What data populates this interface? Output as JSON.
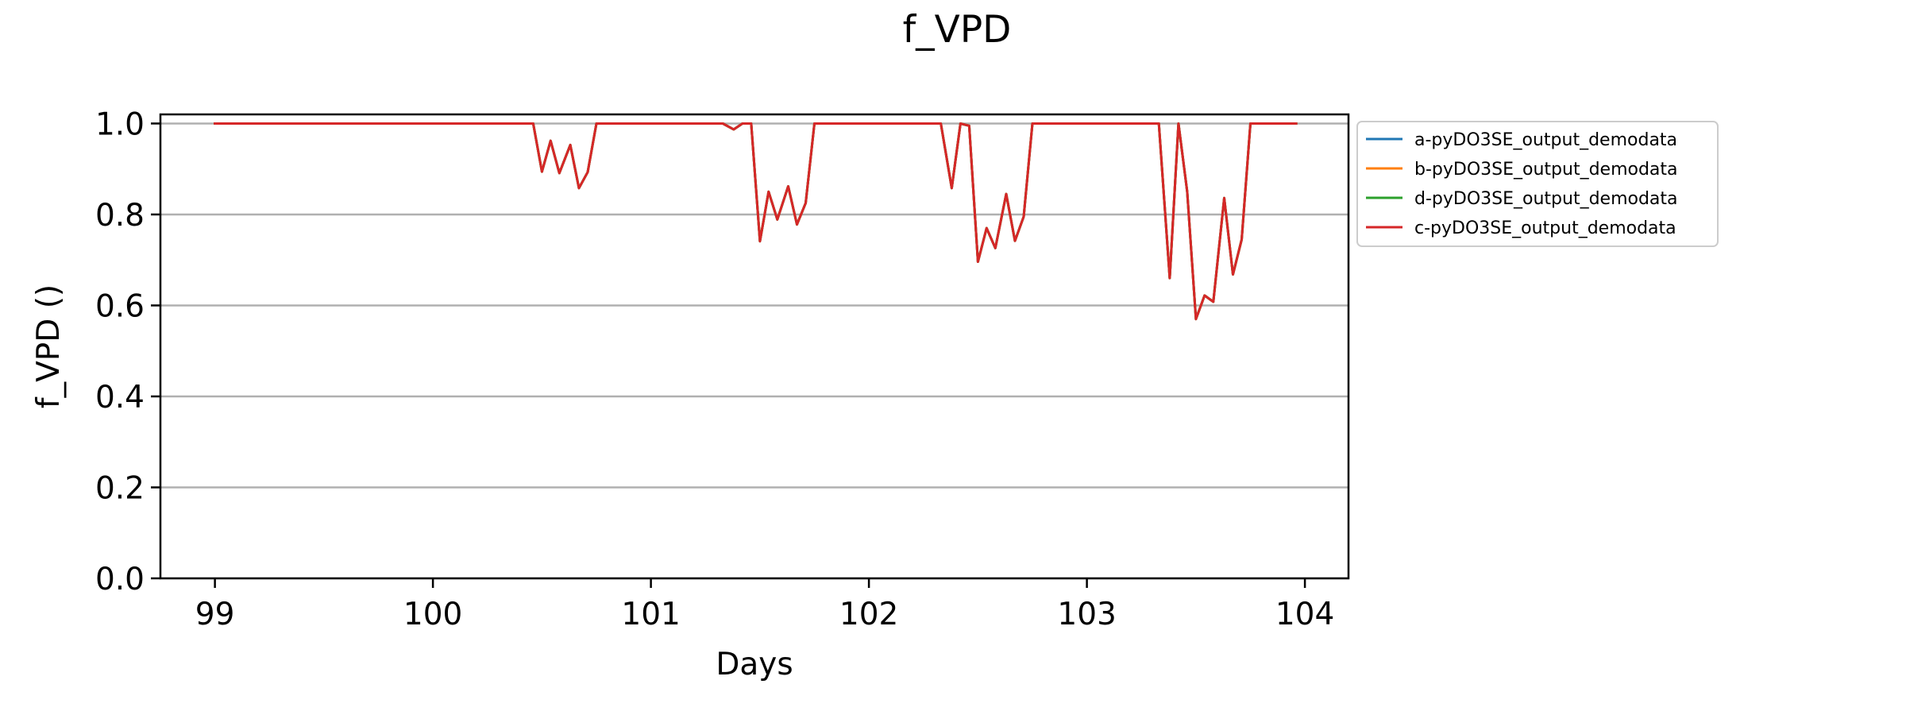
{
  "chart_data": {
    "type": "line",
    "title": "f_VPD",
    "xlabel": "Days",
    "ylabel": "f_VPD ()",
    "xlim": [
      98.75,
      104.2
    ],
    "ylim": [
      0.0,
      1.02
    ],
    "xticks": [
      99,
      100,
      101,
      102,
      103,
      104
    ],
    "yticks": [
      0.0,
      0.2,
      0.4,
      0.6,
      0.8,
      1.0
    ],
    "ytick_labels": [
      "0.0",
      "0.2",
      "0.4",
      "0.6",
      "0.8",
      "1.0"
    ],
    "grid": "horizontal",
    "legend_position": "outside-top-right",
    "x": [
      99.0,
      100.46,
      100.5,
      100.54,
      100.58,
      100.63,
      100.67,
      100.71,
      100.75,
      101.33,
      101.38,
      101.42,
      101.46,
      101.5,
      101.54,
      101.58,
      101.63,
      101.67,
      101.71,
      101.75,
      102.33,
      102.38,
      102.42,
      102.46,
      102.5,
      102.54,
      102.58,
      102.63,
      102.67,
      102.71,
      102.75,
      103.33,
      103.38,
      103.42,
      103.46,
      103.5,
      103.54,
      103.58,
      103.63,
      103.67,
      103.71,
      103.75,
      103.96
    ],
    "series": [
      {
        "name": "a-pyDO3SE_output_demodata",
        "color": "#1f77b4",
        "values": [
          1.0,
          1.0,
          0.894,
          0.962,
          0.891,
          0.953,
          0.858,
          0.893,
          1.0,
          1.0,
          0.987,
          1.0,
          1.0,
          0.741,
          0.85,
          0.789,
          0.862,
          0.778,
          0.825,
          1.0,
          1.0,
          0.858,
          1.0,
          0.995,
          0.696,
          0.77,
          0.726,
          0.845,
          0.742,
          0.795,
          1.0,
          1.0,
          0.66,
          1.0,
          0.85,
          0.57,
          0.622,
          0.608,
          0.836,
          0.668,
          0.745,
          1.0,
          1.0
        ]
      },
      {
        "name": "b-pyDO3SE_output_demodata",
        "color": "#ff7f0e",
        "values": [
          1.0,
          1.0,
          0.894,
          0.962,
          0.891,
          0.953,
          0.858,
          0.893,
          1.0,
          1.0,
          0.987,
          1.0,
          1.0,
          0.741,
          0.85,
          0.789,
          0.862,
          0.778,
          0.825,
          1.0,
          1.0,
          0.858,
          1.0,
          0.995,
          0.696,
          0.77,
          0.726,
          0.845,
          0.742,
          0.795,
          1.0,
          1.0,
          0.66,
          1.0,
          0.85,
          0.57,
          0.622,
          0.608,
          0.836,
          0.668,
          0.745,
          1.0,
          1.0
        ]
      },
      {
        "name": "d-pyDO3SE_output_demodata",
        "color": "#2ca02c",
        "values": [
          1.0,
          1.0,
          0.894,
          0.962,
          0.891,
          0.953,
          0.858,
          0.893,
          1.0,
          1.0,
          0.987,
          1.0,
          1.0,
          0.741,
          0.85,
          0.789,
          0.862,
          0.778,
          0.825,
          1.0,
          1.0,
          0.858,
          1.0,
          0.995,
          0.696,
          0.77,
          0.726,
          0.845,
          0.742,
          0.795,
          1.0,
          1.0,
          0.66,
          1.0,
          0.85,
          0.57,
          0.622,
          0.608,
          0.836,
          0.668,
          0.745,
          1.0,
          1.0
        ]
      },
      {
        "name": "c-pyDO3SE_output_demodata",
        "color": "#d62728",
        "values": [
          1.0,
          1.0,
          0.894,
          0.962,
          0.891,
          0.953,
          0.858,
          0.893,
          1.0,
          1.0,
          0.987,
          1.0,
          1.0,
          0.741,
          0.85,
          0.789,
          0.862,
          0.778,
          0.825,
          1.0,
          1.0,
          0.858,
          1.0,
          0.995,
          0.696,
          0.77,
          0.726,
          0.845,
          0.742,
          0.795,
          1.0,
          1.0,
          0.66,
          1.0,
          0.85,
          0.57,
          0.622,
          0.608,
          0.836,
          0.668,
          0.745,
          1.0,
          1.0
        ]
      }
    ]
  }
}
